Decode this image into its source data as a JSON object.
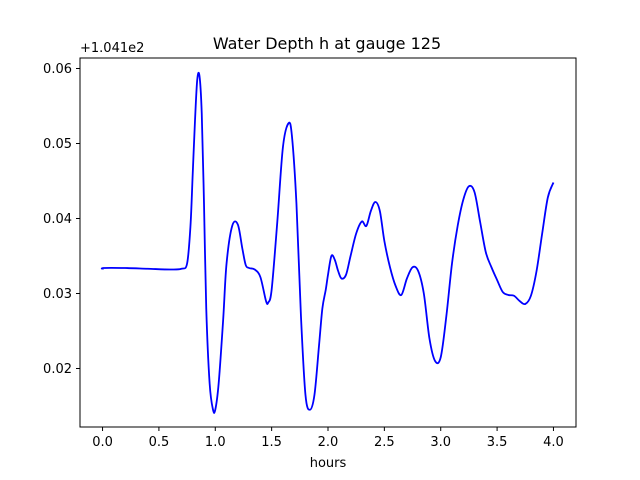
{
  "chart_data": {
    "type": "line",
    "title": "Water Depth h at gauge 125",
    "xlabel": "hours",
    "ylabel": "",
    "y_offset_label": "+1.041e2",
    "y_offset": 104.1,
    "xlim": [
      -0.2,
      4.2
    ],
    "ylim": [
      0.0122,
      0.0614
    ],
    "grid": false,
    "x_ticks": [
      0.0,
      0.5,
      1.0,
      1.5,
      2.0,
      2.5,
      3.0,
      3.5,
      4.0
    ],
    "x_tick_labels": [
      "0.0",
      "0.5",
      "1.0",
      "1.5",
      "2.0",
      "2.5",
      "3.0",
      "3.5",
      "4.0"
    ],
    "y_ticks": [
      0.02,
      0.03,
      0.04,
      0.05,
      0.06
    ],
    "y_tick_labels": [
      "0.02",
      "0.03",
      "0.04",
      "0.05",
      "0.06"
    ],
    "series": [
      {
        "color": "#0000ff",
        "x": [
          0.0,
          0.01,
          0.2,
          0.4,
          0.6,
          0.7,
          0.75,
          0.78,
          0.8,
          0.82,
          0.84,
          0.86,
          0.88,
          0.9,
          0.92,
          0.95,
          0.98,
          1.0,
          1.03,
          1.07,
          1.1,
          1.15,
          1.2,
          1.24,
          1.27,
          1.3,
          1.35,
          1.4,
          1.45,
          1.47,
          1.5,
          1.55,
          1.6,
          1.65,
          1.68,
          1.72,
          1.76,
          1.8,
          1.84,
          1.88,
          1.92,
          1.95,
          1.98,
          2.0,
          2.03,
          2.06,
          2.09,
          2.12,
          2.16,
          2.2,
          2.25,
          2.3,
          2.34,
          2.38,
          2.42,
          2.46,
          2.5,
          2.55,
          2.6,
          2.65,
          2.7,
          2.75,
          2.8,
          2.85,
          2.9,
          2.95,
          3.0,
          3.05,
          3.1,
          3.15,
          3.2,
          3.25,
          3.3,
          3.35,
          3.4,
          3.45,
          3.5,
          3.55,
          3.6,
          3.65,
          3.7,
          3.75,
          3.8,
          3.85,
          3.9,
          3.95,
          4.0
        ],
        "y": [
          0.0332,
          0.0334,
          0.0334,
          0.0333,
          0.0332,
          0.0333,
          0.034,
          0.039,
          0.046,
          0.053,
          0.0585,
          0.059,
          0.054,
          0.042,
          0.028,
          0.018,
          0.0145,
          0.0145,
          0.018,
          0.0265,
          0.034,
          0.039,
          0.0392,
          0.036,
          0.0338,
          0.0334,
          0.0332,
          0.0322,
          0.029,
          0.0288,
          0.0305,
          0.0395,
          0.0495,
          0.0527,
          0.051,
          0.042,
          0.027,
          0.0165,
          0.0145,
          0.0165,
          0.023,
          0.028,
          0.0305,
          0.0325,
          0.035,
          0.0345,
          0.033,
          0.032,
          0.0325,
          0.035,
          0.038,
          0.0396,
          0.039,
          0.041,
          0.0422,
          0.041,
          0.037,
          0.0335,
          0.031,
          0.0298,
          0.032,
          0.0335,
          0.033,
          0.03,
          0.024,
          0.021,
          0.0215,
          0.027,
          0.034,
          0.039,
          0.0425,
          0.0443,
          0.0435,
          0.0395,
          0.0355,
          0.0335,
          0.0318,
          0.0302,
          0.0298,
          0.0297,
          0.029,
          0.0286,
          0.0297,
          0.033,
          0.038,
          0.0428,
          0.0448
        ]
      }
    ]
  }
}
